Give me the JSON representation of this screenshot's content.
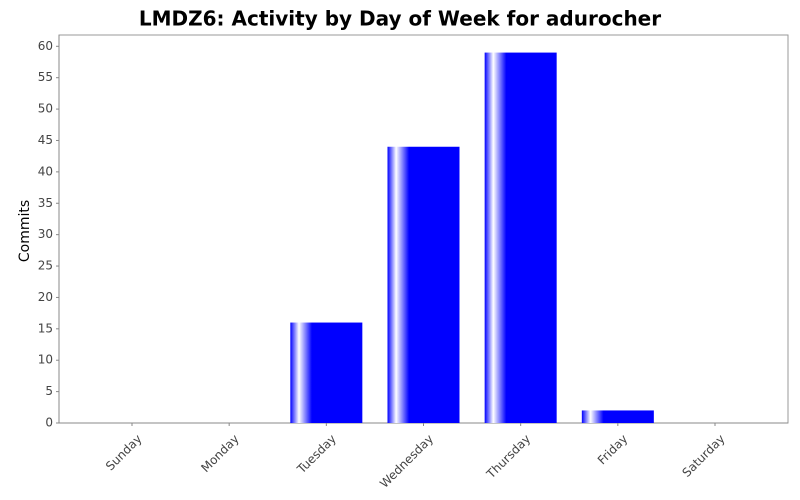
{
  "chart_data": {
    "type": "bar",
    "title": "LMDZ6: Activity by Day of Week for adurocher",
    "y_label": "Commits",
    "categories": [
      "Sunday",
      "Monday",
      "Tuesday",
      "Wednesday",
      "Thursday",
      "Friday",
      "Saturday"
    ],
    "values": [
      0,
      0,
      16,
      44,
      59,
      2,
      0
    ],
    "color": "#0000ff",
    "ylim": [
      0,
      61.8
    ],
    "yticks": [
      0,
      5,
      10,
      15,
      20,
      25,
      30,
      35,
      40,
      45,
      50,
      55,
      60
    ],
    "grid": false
  }
}
